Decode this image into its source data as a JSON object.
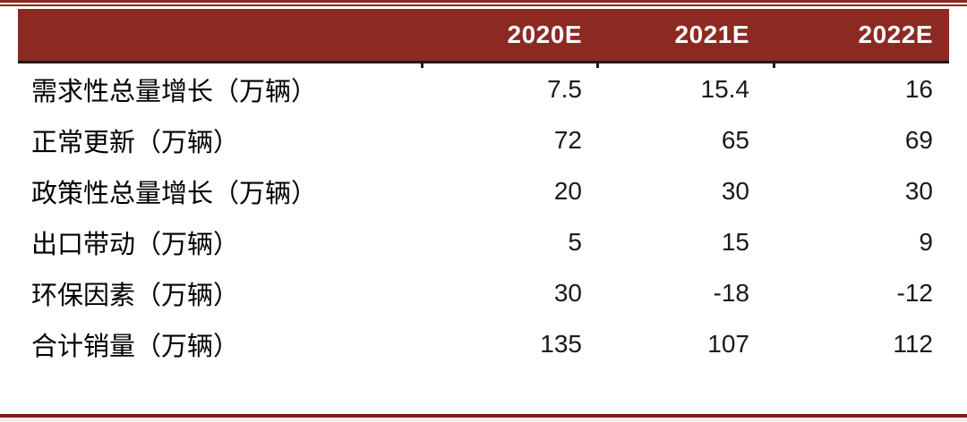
{
  "chart_data": {
    "type": "table",
    "title": "",
    "columns": [
      "2020E",
      "2021E",
      "2022E"
    ],
    "rows": [
      {
        "label": "需求性总量增长（万辆）",
        "values": [
          7.5,
          15.4,
          16
        ]
      },
      {
        "label": "正常更新（万辆）",
        "values": [
          72,
          65,
          69
        ]
      },
      {
        "label": "政策性总量增长（万辆）",
        "values": [
          20,
          30,
          30
        ]
      },
      {
        "label": "出口带动（万辆）",
        "values": [
          5,
          15,
          9
        ]
      },
      {
        "label": "环保因素（万辆）",
        "values": [
          30,
          -18,
          -12
        ]
      },
      {
        "label": "合计销量（万辆）",
        "values": [
          135,
          107,
          112
        ]
      }
    ],
    "layout": {
      "header_alignment": "right",
      "value_alignment": "right",
      "grid": "none"
    }
  },
  "colors": {
    "header_bg": "#8C2922",
    "header_text": "#FFFFFF",
    "body_text": "#1A1A1A",
    "top_rule": "#8C2922",
    "header_underline": "#1A1A1A",
    "bottom_rule": "#821F1B"
  }
}
